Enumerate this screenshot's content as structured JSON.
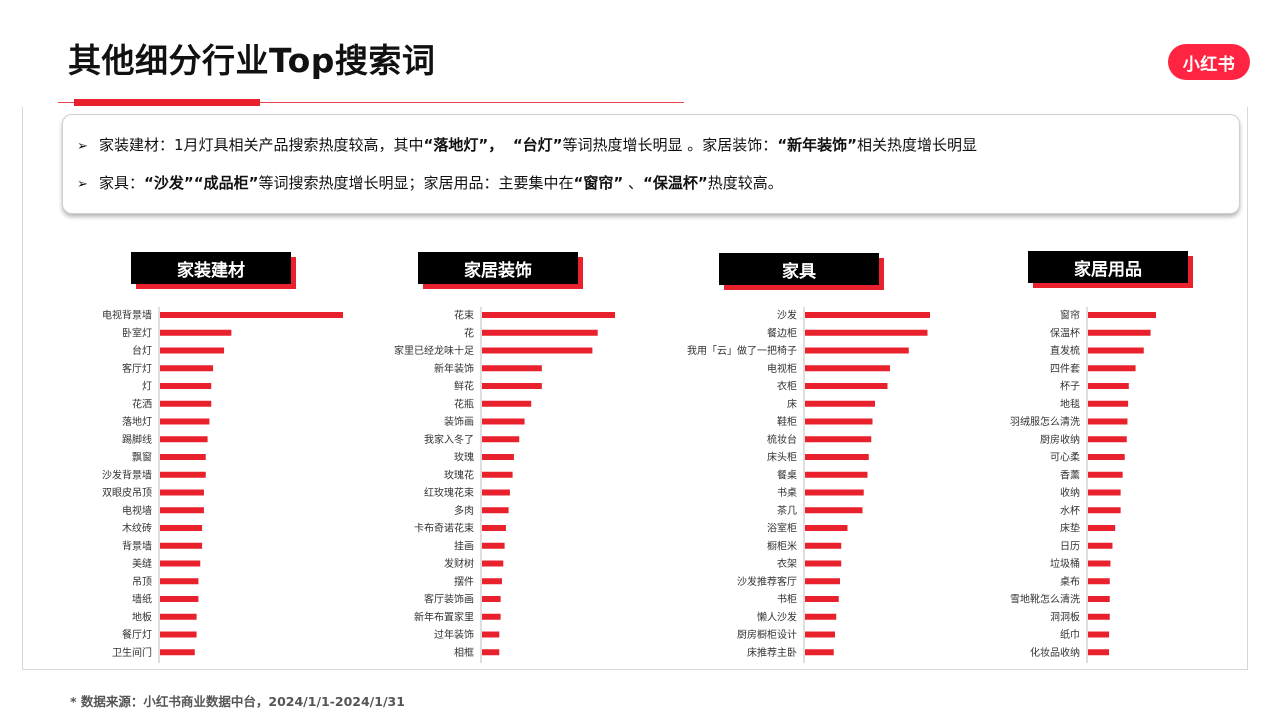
{
  "header": {
    "title": "其他细分行业Top搜索词",
    "logo_text": "小红书"
  },
  "summary": {
    "line1": [
      "家装建材：1月灯具相关产品搜索热度较高，其中",
      "“落地灯”，",
      "“台灯”",
      "等词热度增长明显 。家居装饰：",
      "“新年装饰”",
      "相关热度增长明显"
    ],
    "line2": [
      "家具：",
      "“沙发”",
      "“成品柜”",
      "等词搜索热度增长明显；家居用品：主要集中在",
      "“窗帘”",
      "、",
      "“保温杯”",
      "热度较高。"
    ]
  },
  "footnote": "* 数据来源：小红书商业数据中台，2024/1/1-2024/1/31",
  "colors": {
    "accent": "#e8212d",
    "bar": "#e8212d",
    "axis": "#bdbdbd"
  },
  "chart_data": [
    {
      "type": "bar",
      "title": "家装建材",
      "categories": [
        "电视背景墙",
        "卧室灯",
        "台灯",
        "客厅灯",
        "灯",
        "花洒",
        "落地灯",
        "踢脚线",
        "飘窗",
        "沙发背景墙",
        "双眼皮吊顶",
        "电视墙",
        "木纹砖",
        "背景墙",
        "美缝",
        "吊顶",
        "墙纸",
        "地板",
        "餐厅灯",
        "卫生间门"
      ],
      "values": [
        100,
        39,
        35,
        29,
        28,
        28,
        27,
        26,
        25,
        25,
        24,
        24,
        23,
        23,
        22,
        21,
        21,
        20,
        20,
        19
      ]
    },
    {
      "type": "bar",
      "title": "家居装饰",
      "categories": [
        "花束",
        "花",
        "家里已经龙味十足",
        "新年装饰",
        "鲜花",
        "花瓶",
        "装饰画",
        "我家入冬了",
        "玫瑰",
        "玫瑰花",
        "红玫瑰花束",
        "多肉",
        "卡布奇诺花束",
        "挂画",
        "发财树",
        "摆件",
        "客厅装饰画",
        "新年布置家里",
        "过年装饰",
        "相框"
      ],
      "values": [
        100,
        87,
        83,
        45,
        45,
        37,
        32,
        28,
        24,
        23,
        21,
        20,
        18,
        17,
        16,
        15,
        14,
        14,
        13,
        13
      ]
    },
    {
      "type": "bar",
      "title": "家具",
      "categories": [
        "沙发",
        "餐边柜",
        "我用「云」做了一把椅子",
        "电视柜",
        "衣柜",
        "床",
        "鞋柜",
        "梳妆台",
        "床头柜",
        "餐桌",
        "书桌",
        "茶几",
        "浴室柜",
        "橱柜米",
        "衣架",
        "沙发推荐客厅",
        "书柜",
        "懒人沙发",
        "厨房橱柜设计",
        "床推荐主卧"
      ],
      "values": [
        100,
        98,
        83,
        68,
        66,
        56,
        54,
        53,
        51,
        50,
        47,
        46,
        34,
        29,
        29,
        28,
        27,
        25,
        24,
        23
      ]
    },
    {
      "type": "bar",
      "title": "家居用品",
      "categories": [
        "窗帘",
        "保温杯",
        "直发梳",
        "四件套",
        "杯子",
        "地毯",
        "羽绒服怎么清洗",
        "厨房收纳",
        "可心柔",
        "香薰",
        "收纳",
        "水杯",
        "床垫",
        "日历",
        "垃圾桶",
        "桌布",
        "雪地靴怎么清洗",
        "洞洞板",
        "纸巾",
        "化妆品收纳"
      ],
      "values": [
        100,
        92,
        82,
        70,
        60,
        59,
        58,
        57,
        54,
        51,
        48,
        48,
        40,
        36,
        33,
        32,
        32,
        32,
        31,
        31
      ]
    }
  ]
}
